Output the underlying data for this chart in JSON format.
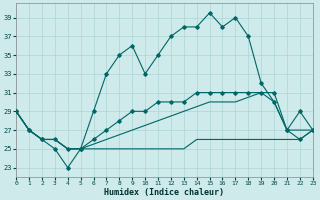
{
  "xlabel": "Humidex (Indice chaleur)",
  "bg_color": "#ceeaea",
  "line_color": "#006666",
  "grid_color": "#aed4d4",
  "x_ticks": [
    0,
    1,
    2,
    3,
    4,
    5,
    6,
    7,
    8,
    9,
    10,
    11,
    12,
    13,
    14,
    15,
    16,
    17,
    18,
    19,
    20,
    21,
    22,
    23
  ],
  "y_ticks": [
    23,
    25,
    27,
    29,
    31,
    33,
    35,
    37,
    39
  ],
  "xlim": [
    0,
    23
  ],
  "ylim": [
    22.0,
    40.5
  ],
  "series1": [
    29,
    27,
    26,
    26,
    25,
    25,
    29,
    33,
    35,
    36,
    33,
    35,
    37,
    38,
    38,
    39.5,
    38,
    39,
    37,
    32,
    30,
    27,
    29,
    27
  ],
  "series2": [
    29,
    27,
    26,
    25,
    23,
    25,
    26,
    27,
    28,
    29,
    29,
    30,
    30,
    30,
    31,
    31,
    31,
    31,
    31,
    31,
    31,
    27,
    26,
    27
  ],
  "series3": [
    29,
    27,
    26,
    26,
    25,
    25,
    25,
    25,
    25,
    25,
    25,
    25,
    25,
    25,
    26,
    26,
    26,
    26,
    26,
    26,
    26,
    26,
    26,
    27
  ],
  "series4": [
    29,
    27,
    26,
    26,
    25,
    25,
    25.5,
    26,
    26.5,
    27,
    27.5,
    28,
    28.5,
    29,
    29.5,
    30,
    30,
    30,
    30.5,
    31,
    30,
    27,
    27,
    27
  ]
}
